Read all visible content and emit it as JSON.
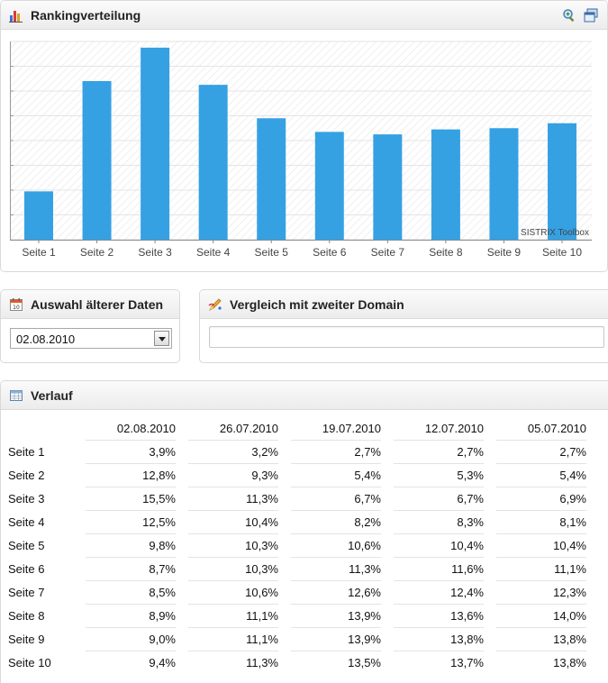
{
  "ranking_panel": {
    "title": "Rankingverteilung",
    "tools": [
      "zoom-chart-icon",
      "window-icon"
    ],
    "watermark": "SISTRIX Toolbox"
  },
  "chart_data": {
    "type": "bar",
    "categories": [
      "Seite 1",
      "Seite 2",
      "Seite 3",
      "Seite 4",
      "Seite 5",
      "Seite 6",
      "Seite 7",
      "Seite 8",
      "Seite 9",
      "Seite 10"
    ],
    "values": [
      3.9,
      12.8,
      15.5,
      12.5,
      9.8,
      8.7,
      8.5,
      8.9,
      9.0,
      9.4
    ],
    "title": "",
    "xlabel": "",
    "ylabel": "",
    "ylim": [
      0,
      16
    ],
    "grid": true,
    "bar_color": "#35a1e3"
  },
  "older_data_panel": {
    "title": "Auswahl älterer Daten",
    "selected_date": "02.08.2010"
  },
  "compare_panel": {
    "title": "Vergleich mit zweiter Domain",
    "input_value": ""
  },
  "history_panel": {
    "title": "Verlauf",
    "columns": [
      "02.08.2010",
      "26.07.2010",
      "19.07.2010",
      "12.07.2010",
      "05.07.2010"
    ],
    "rows": [
      {
        "label": "Seite 1",
        "values": [
          "3,9%",
          "3,2%",
          "2,7%",
          "2,7%",
          "2,7%"
        ]
      },
      {
        "label": "Seite 2",
        "values": [
          "12,8%",
          "9,3%",
          "5,4%",
          "5,3%",
          "5,4%"
        ]
      },
      {
        "label": "Seite 3",
        "values": [
          "15,5%",
          "11,3%",
          "6,7%",
          "6,7%",
          "6,9%"
        ]
      },
      {
        "label": "Seite 4",
        "values": [
          "12,5%",
          "10,4%",
          "8,2%",
          "8,3%",
          "8,1%"
        ]
      },
      {
        "label": "Seite 5",
        "values": [
          "9,8%",
          "10,3%",
          "10,6%",
          "10,4%",
          "10,4%"
        ]
      },
      {
        "label": "Seite 6",
        "values": [
          "8,7%",
          "10,3%",
          "11,3%",
          "11,6%",
          "11,1%"
        ]
      },
      {
        "label": "Seite 7",
        "values": [
          "8,5%",
          "10,6%",
          "12,6%",
          "12,4%",
          "12,3%"
        ]
      },
      {
        "label": "Seite 8",
        "values": [
          "8,9%",
          "11,1%",
          "13,9%",
          "13,6%",
          "14,0%"
        ]
      },
      {
        "label": "Seite 9",
        "values": [
          "9,0%",
          "11,1%",
          "13,9%",
          "13,8%",
          "13,8%"
        ]
      },
      {
        "label": "Seite 10",
        "values": [
          "9,4%",
          "11,3%",
          "13,5%",
          "13,7%",
          "13,8%"
        ]
      }
    ]
  }
}
